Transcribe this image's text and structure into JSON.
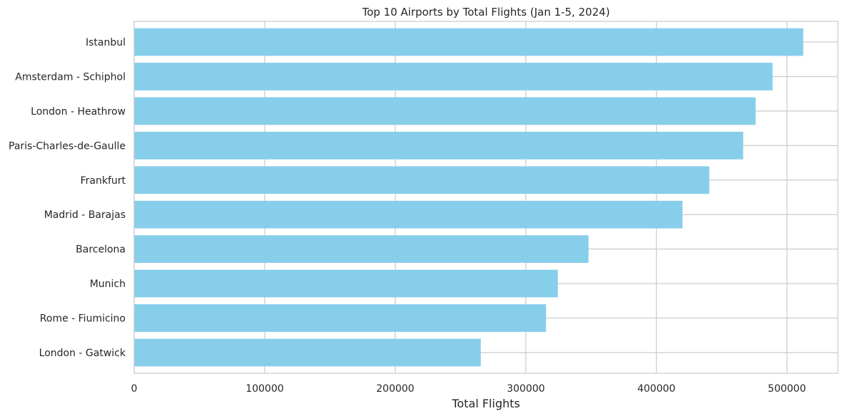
{
  "chart_data": {
    "type": "bar",
    "orientation": "horizontal",
    "title": "Top 10 Airports by Total Flights (Jan 1-5, 2024)",
    "xlabel": "Total Flights",
    "ylabel": "",
    "categories": [
      "Istanbul",
      "Amsterdam - Schiphol",
      "London - Heathrow",
      "Paris-Charles-de-Gaulle",
      "Frankfurt",
      "Madrid - Barajas",
      "Barcelona",
      "Munich",
      "Rome - Fiumicino",
      "London - Gatwick"
    ],
    "values": [
      512500,
      489000,
      476000,
      466500,
      440500,
      420000,
      348000,
      324500,
      315500,
      265500
    ],
    "xlim": [
      0,
      539000
    ],
    "xticks": [
      0,
      100000,
      200000,
      300000,
      400000,
      500000
    ],
    "xtick_labels": [
      "0",
      "100000",
      "200000",
      "300000",
      "400000",
      "500000"
    ],
    "grid": true,
    "colors": {
      "bar": "#87ceeb",
      "grid": "#cccccc",
      "axis": "#cccccc",
      "text": "#262626"
    }
  }
}
